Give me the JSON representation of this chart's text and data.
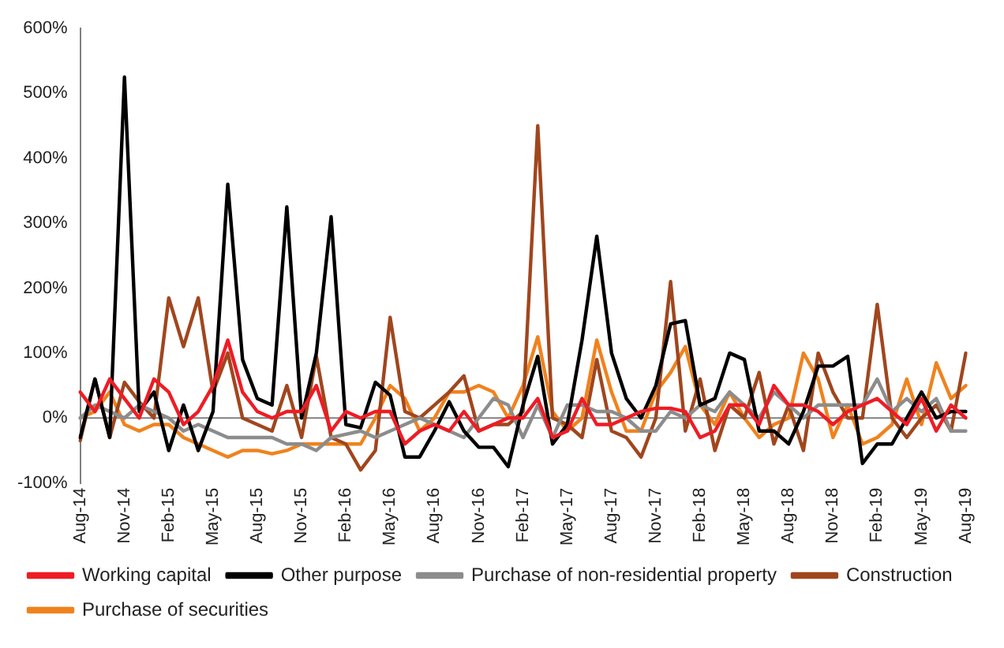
{
  "chart_data": {
    "type": "line",
    "categories": [
      "Aug-14",
      null,
      null,
      "Nov-14",
      null,
      null,
      "Feb-15",
      null,
      null,
      "May-15",
      null,
      null,
      "Aug-15",
      null,
      null,
      "Nov-15",
      null,
      null,
      "Feb-16",
      null,
      null,
      "May-16",
      null,
      null,
      "Aug-16",
      null,
      null,
      "Nov-16",
      null,
      null,
      "Feb-17",
      null,
      null,
      "May-17",
      null,
      null,
      "Aug-17",
      null,
      null,
      "Nov-17",
      null,
      null,
      "Feb-18",
      null,
      null,
      "May-18",
      null,
      null,
      "Aug-18",
      null,
      null,
      "Nov-18",
      null,
      null,
      "Feb-19",
      null,
      null,
      "May-19",
      null,
      null,
      "Aug-19"
    ],
    "series": [
      {
        "name": "Working capital",
        "color": "#ee1c25",
        "values": [
          40,
          10,
          60,
          30,
          0,
          60,
          40,
          -10,
          10,
          50,
          120,
          40,
          10,
          0,
          10,
          10,
          50,
          -20,
          10,
          0,
          10,
          10,
          -40,
          -20,
          -10,
          -20,
          10,
          -20,
          -10,
          0,
          0,
          30,
          -30,
          -20,
          30,
          -10,
          -10,
          0,
          10,
          15,
          15,
          10,
          -30,
          -20,
          20,
          20,
          -10,
          50,
          20,
          20,
          10,
          -10,
          10,
          20,
          30,
          10,
          -10,
          30,
          -20,
          20,
          0
        ]
      },
      {
        "name": "Other purpose",
        "color": "#000000",
        "values": [
          -30,
          60,
          -30,
          525,
          10,
          40,
          -50,
          20,
          -50,
          10,
          360,
          90,
          30,
          20,
          325,
          0,
          100,
          310,
          -10,
          -15,
          55,
          35,
          -60,
          -60,
          -20,
          25,
          -20,
          -45,
          -45,
          -75,
          20,
          95,
          -40,
          -10,
          120,
          280,
          100,
          30,
          0,
          50,
          145,
          150,
          20,
          30,
          100,
          90,
          -20,
          -20,
          -40,
          10,
          80,
          80,
          95,
          -70,
          -40,
          -40,
          0,
          40,
          0,
          10,
          10
        ]
      },
      {
        "name": "Purchase of non-residential property",
        "color": "#8c8c8c",
        "values": [
          0,
          20,
          10,
          0,
          20,
          10,
          0,
          -20,
          -10,
          -20,
          -30,
          -30,
          -30,
          -30,
          -40,
          -40,
          -50,
          -30,
          -25,
          -20,
          -30,
          -20,
          -10,
          0,
          -10,
          -20,
          -30,
          0,
          30,
          20,
          -30,
          20,
          -30,
          20,
          20,
          10,
          10,
          0,
          -20,
          -20,
          10,
          0,
          20,
          10,
          40,
          20,
          0,
          40,
          20,
          0,
          20,
          20,
          20,
          20,
          60,
          10,
          30,
          10,
          30,
          -20,
          -20
        ]
      },
      {
        "name": "Construction",
        "color": "#a0461e",
        "values": [
          -35,
          60,
          -30,
          55,
          25,
          0,
          185,
          110,
          185,
          40,
          100,
          0,
          -10,
          -20,
          50,
          -30,
          95,
          -30,
          -40,
          -80,
          -50,
          155,
          10,
          0,
          20,
          40,
          65,
          -20,
          -10,
          -10,
          10,
          450,
          0,
          -10,
          -30,
          90,
          -20,
          -30,
          -60,
          0,
          210,
          -20,
          60,
          -50,
          20,
          0,
          70,
          -40,
          20,
          -50,
          100,
          40,
          0,
          0,
          175,
          0,
          -30,
          0,
          20,
          -20,
          100
        ]
      },
      {
        "name": "Purchase of securities",
        "color": "#f0821e",
        "values": [
          0,
          10,
          40,
          -10,
          -20,
          -10,
          -10,
          -30,
          -40,
          -50,
          -60,
          -50,
          -50,
          -55,
          -50,
          -40,
          -40,
          -40,
          -40,
          -40,
          0,
          50,
          30,
          -20,
          0,
          40,
          40,
          50,
          40,
          0,
          50,
          125,
          10,
          -20,
          0,
          120,
          40,
          -20,
          -20,
          40,
          70,
          110,
          20,
          -10,
          40,
          0,
          -30,
          -10,
          0,
          100,
          60,
          -30,
          20,
          -40,
          -30,
          -10,
          60,
          -10,
          85,
          30,
          50
        ]
      }
    ],
    "ylim": [
      -100,
      600
    ],
    "yticks": [
      {
        "value": -100,
        "label": "-100%"
      },
      {
        "value": 0,
        "label": "0%"
      },
      {
        "value": 100,
        "label": "100%"
      },
      {
        "value": 200,
        "label": "200%"
      },
      {
        "value": 300,
        "label": "300%"
      },
      {
        "value": 400,
        "label": "400%"
      },
      {
        "value": 500,
        "label": "500%"
      },
      {
        "value": 600,
        "label": "600%"
      }
    ],
    "ref_lines": [
      {
        "axis": "y",
        "value": 0,
        "color": "#808080"
      }
    ],
    "grid": false,
    "legend": "bottom",
    "marker": "none",
    "line_style": "solid"
  }
}
